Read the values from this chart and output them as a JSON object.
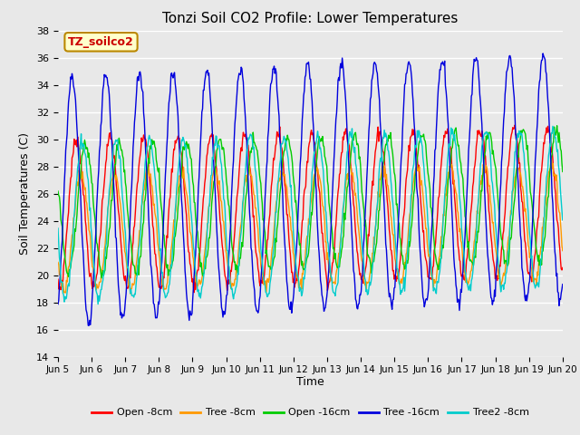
{
  "title": "Tonzi Soil CO2 Profile: Lower Temperatures",
  "ylabel": "Soil Temperatures (C)",
  "xlabel": "Time",
  "ylim": [
    14,
    38
  ],
  "yticks": [
    14,
    16,
    18,
    20,
    22,
    24,
    26,
    28,
    30,
    32,
    34,
    36,
    38
  ],
  "xtick_labels": [
    "Jun 5",
    "Jun 6",
    "Jun 7",
    "Jun 8",
    "Jun 9",
    "Jun 10",
    "Jun 11",
    "Jun 12",
    "Jun 13",
    "Jun 14",
    "Jun 15",
    "Jun 16",
    "Jun 17",
    "Jun 18",
    "Jun 19",
    "Jun 20"
  ],
  "legend_label": "TZ_soilco2",
  "legend_box_color": "#ffffcc",
  "legend_box_edge": "#bb8800",
  "legend_text_color": "#cc0000",
  "series": [
    {
      "label": "Open -8cm",
      "color": "#ff0000"
    },
    {
      "label": "Tree -8cm",
      "color": "#ff9900"
    },
    {
      "label": "Open -16cm",
      "color": "#00cc00"
    },
    {
      "label": "Tree -16cm",
      "color": "#0000dd"
    },
    {
      "label": "Tree2 -8cm",
      "color": "#00cccc"
    }
  ],
  "bg_color": "#e8e8e8",
  "plot_bg_color": "#e8e8e8",
  "grid_color": "#ffffff",
  "n_days": 15,
  "samples_per_day": 48,
  "phase_shifts": [
    0.05,
    0.18,
    0.32,
    -0.08,
    0.22
  ],
  "amplitudes": [
    5.5,
    4.2,
    4.8,
    9.0,
    5.8
  ],
  "baselines": [
    24.5,
    23.2,
    24.8,
    25.5,
    24.0
  ],
  "trend_slope": [
    0.06,
    0.04,
    0.07,
    0.12,
    0.06
  ],
  "noise_std": [
    0.25,
    0.25,
    0.25,
    0.25,
    0.25
  ]
}
